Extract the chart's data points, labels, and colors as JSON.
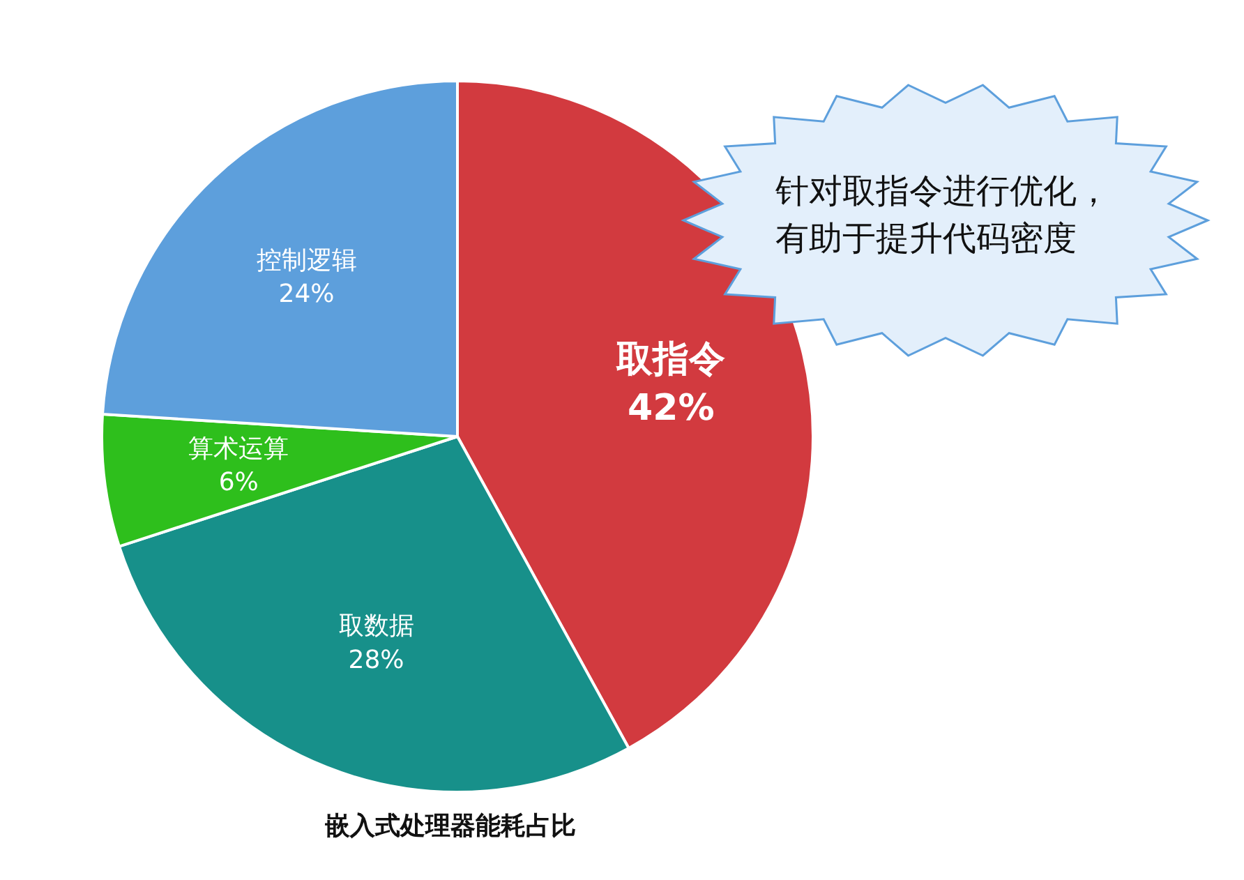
{
  "chart_data": {
    "type": "pie",
    "title": "嵌入式处理器能耗占比",
    "categories": [
      "取指令",
      "取数据",
      "算术运算",
      "控制逻辑"
    ],
    "values": [
      42,
      28,
      6,
      24
    ],
    "value_labels": [
      "42%",
      "28%",
      "6%",
      "24%"
    ],
    "colors": [
      "#d23a3f",
      "#17908a",
      "#2ebf1c",
      "#5d9fdc"
    ],
    "annotations": [
      "针对取指令进行优化，有助于提升代码密度"
    ]
  }
}
